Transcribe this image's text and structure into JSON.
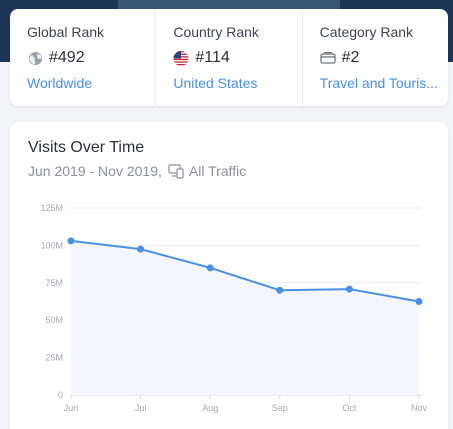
{
  "ranks": [
    {
      "title": "Global Rank",
      "value": "#492",
      "link": "Worldwide",
      "icon": "globe-icon"
    },
    {
      "title": "Country Rank",
      "value": "#114",
      "link": "United States",
      "icon": "us-flag-icon"
    },
    {
      "title": "Category Rank",
      "value": "#2",
      "link": "Travel and Touris...",
      "icon": "category-icon"
    }
  ],
  "visits": {
    "title": "Visits Over Time",
    "date_range": "Jun 2019 - Nov 2019,",
    "traffic_label": "All Traffic",
    "traffic_icon": "devices-icon"
  },
  "colors": {
    "accent": "#4a90e2",
    "line": "#4a90e2",
    "area": "#f3f6fd",
    "header_band": "#1d3557"
  },
  "chart_data": {
    "type": "area",
    "title": "Visits Over Time",
    "categories": [
      "Jun",
      "Jul",
      "Aug",
      "Sep",
      "Oct",
      "Nov"
    ],
    "series": [
      {
        "values": [
          103,
          97.5,
          85,
          70,
          70.8,
          62.5
        ]
      }
    ],
    "unit": "M",
    "ylim": [
      0,
      125
    ],
    "yticks": [
      0,
      25,
      50,
      75,
      100,
      125
    ],
    "ytick_labels": [
      "0",
      "25M",
      "50M",
      "75M",
      "100M",
      "125M"
    ],
    "grid": true
  }
}
